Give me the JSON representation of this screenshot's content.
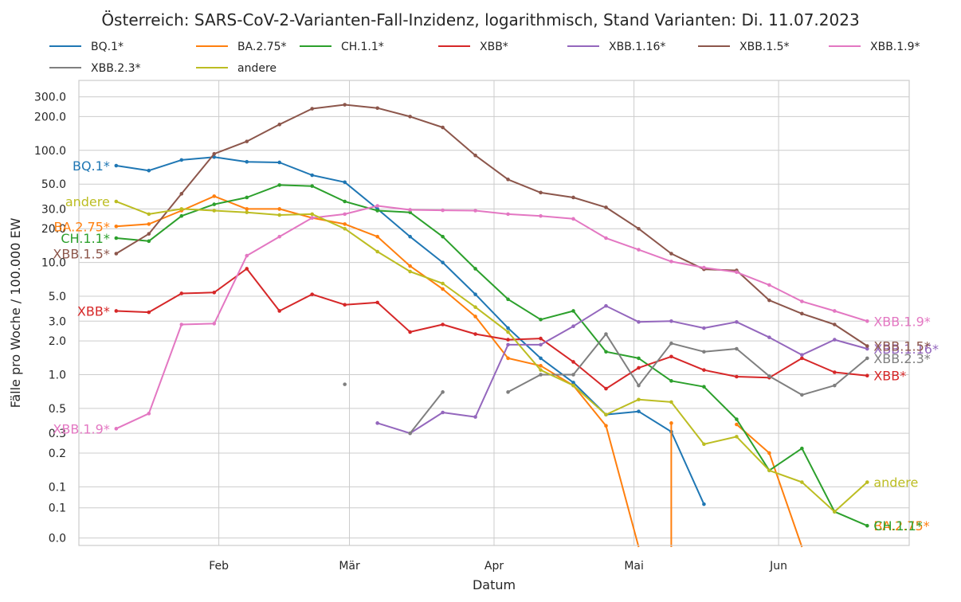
{
  "chart_data": {
    "type": "line",
    "title": "Österreich: SARS-CoV-2-Varianten-Fall-Inzidenz, logarithmisch, Stand Varianten: Di. 11.07.2023",
    "xlabel": "Datum",
    "ylabel": "Fälle pro Woche / 100.000 EW",
    "yscale": "log",
    "ylim": [
      0.03,
      420
    ],
    "xlim": [
      "2023-01-02",
      "2023-06-29"
    ],
    "grid": true,
    "legend_position": "top, above plot, 7 columns",
    "x_ticks": [
      {
        "date": "2023-02-01",
        "label": "Feb"
      },
      {
        "date": "2023-03-01",
        "label": "Mär"
      },
      {
        "date": "2023-04-01",
        "label": "Apr"
      },
      {
        "date": "2023-05-01",
        "label": "Mai"
      },
      {
        "date": "2023-06-01",
        "label": "Jun"
      }
    ],
    "y_ticks": [
      {
        "value": 0.035,
        "label": "0.0"
      },
      {
        "value": 0.065,
        "label": "0.1"
      },
      {
        "value": 0.1,
        "label": "0.1"
      },
      {
        "value": 0.2,
        "label": "0.2"
      },
      {
        "value": 0.3,
        "label": "0.3"
      },
      {
        "value": 0.5,
        "label": "0.5"
      },
      {
        "value": 1,
        "label": "1.0"
      },
      {
        "value": 2,
        "label": "2.0"
      },
      {
        "value": 3,
        "label": "3.0"
      },
      {
        "value": 5,
        "label": "5.0"
      },
      {
        "value": 10,
        "label": "10.0"
      },
      {
        "value": 20,
        "label": "20.0"
      },
      {
        "value": 30,
        "label": "30.0"
      },
      {
        "value": 50,
        "label": "50.0"
      },
      {
        "value": 100,
        "label": "100.0"
      },
      {
        "value": 200,
        "label": "200.0"
      },
      {
        "value": 300,
        "label": "300.0"
      }
    ],
    "x": [
      "2023-01-10",
      "2023-01-17",
      "2023-01-24",
      "2023-01-31",
      "2023-02-07",
      "2023-02-14",
      "2023-02-21",
      "2023-02-28",
      "2023-03-07",
      "2023-03-14",
      "2023-03-21",
      "2023-03-28",
      "2023-04-04",
      "2023-04-11",
      "2023-04-18",
      "2023-04-25",
      "2023-05-02",
      "2023-05-09",
      "2023-05-16",
      "2023-05-23",
      "2023-05-30",
      "2023-06-06",
      "2023-06-13",
      "2023-06-20"
    ],
    "series": [
      {
        "name": "BQ.1*",
        "color": "#1f77b4",
        "end_label": "BQ.1*",
        "label_side": "left",
        "values": [
          73,
          66,
          82,
          87,
          79,
          78,
          60,
          52,
          30,
          17,
          10,
          5.2,
          2.6,
          1.4,
          0.85,
          0.44,
          0.47,
          0.31,
          0.07,
          null,
          null,
          null,
          null,
          null
        ]
      },
      {
        "name": "BA.2.75*",
        "color": "#ff7f0e",
        "end_label": "BA.2.75*",
        "label_side": "left",
        "values": [
          21,
          22,
          29,
          39,
          30,
          30,
          25,
          22,
          17,
          9.3,
          5.8,
          3.3,
          1.4,
          1.2,
          0.8,
          0.35,
          0,
          0.37,
          null,
          0.36,
          0.2,
          0,
          null,
          0
        ]
      },
      {
        "name": "CH.1.1*",
        "color": "#2ca02c",
        "end_label": "CH.1.1*",
        "label_side": "left",
        "values": [
          16.5,
          15.5,
          26,
          33,
          38,
          49,
          48,
          35,
          29,
          28,
          17,
          8.8,
          4.7,
          3.1,
          3.7,
          1.6,
          1.4,
          0.88,
          0.78,
          0.4,
          0.14,
          0.22,
          0.06,
          0.045
        ]
      },
      {
        "name": "XBB*",
        "color": "#d62728",
        "end_label": "XBB*",
        "label_side": "left",
        "values": [
          3.7,
          3.6,
          5.3,
          5.4,
          8.8,
          3.7,
          5.2,
          4.2,
          4.4,
          2.4,
          2.8,
          2.3,
          2.05,
          2.1,
          1.3,
          0.75,
          1.15,
          1.45,
          1.1,
          0.96,
          0.94,
          1.4,
          1.05,
          0.98
        ]
      },
      {
        "name": "XBB.1.16*",
        "color": "#9467bd",
        "end_label": "XBB.1.16*",
        "label_side": "right",
        "values": [
          null,
          null,
          null,
          null,
          null,
          null,
          null,
          null,
          0.37,
          0.3,
          0.46,
          0.42,
          1.85,
          1.85,
          2.7,
          4.1,
          2.95,
          3.0,
          2.6,
          2.95,
          2.15,
          1.5,
          2.05,
          1.7
        ]
      },
      {
        "name": "XBB.1.5*",
        "color": "#8c564b",
        "end_label": "XBB.1.5*",
        "label_side": "both",
        "values": [
          12,
          18,
          41,
          93,
          120,
          170,
          235,
          255,
          238,
          200,
          160,
          90,
          55,
          42,
          38,
          31,
          20,
          12,
          8.7,
          8.5,
          4.6,
          3.5,
          2.8,
          1.8
        ]
      },
      {
        "name": "XBB.1.9*",
        "color": "#e377c2",
        "end_label": "XBB.1.9*",
        "label_side": "both",
        "values": [
          0.33,
          0.45,
          2.8,
          2.85,
          11.5,
          17,
          25,
          27,
          32,
          29.5,
          29.2,
          29,
          27,
          26,
          24.5,
          16.5,
          13,
          10.2,
          9,
          8.2,
          6.3,
          4.5,
          3.7,
          3
        ]
      },
      {
        "name": "XBB.2.3*",
        "color": "#7f7f7f",
        "end_label": "XBB.2.3*",
        "label_side": "right",
        "values": [
          null,
          null,
          null,
          null,
          null,
          null,
          null,
          0.82,
          null,
          0.3,
          0.7,
          null,
          0.7,
          1.0,
          1.0,
          2.3,
          0.8,
          1.9,
          1.6,
          1.7,
          0.97,
          0.66,
          0.8,
          1.4
        ]
      },
      {
        "name": "andere",
        "color": "#bcbd22",
        "end_label": "andere",
        "label_side": "both",
        "values": [
          35,
          27,
          30,
          29,
          28,
          26.5,
          27,
          20,
          12.5,
          8.3,
          6.5,
          4,
          2.4,
          1.1,
          0.8,
          0.44,
          0.6,
          0.57,
          0.24,
          0.28,
          0.14,
          0.11,
          0.06,
          0.11
        ]
      }
    ]
  }
}
